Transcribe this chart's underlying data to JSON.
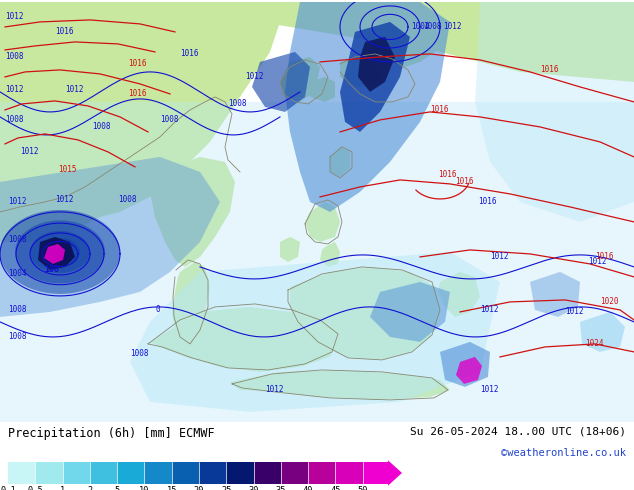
{
  "title_left": "Precipitation (6h) [mm] ECMWF",
  "title_right": "Su 26-05-2024 18..00 UTC (18+06)",
  "attribution": "©weatheronline.co.uk",
  "colorbar_labels": [
    "0.1",
    "0.5",
    "1",
    "2",
    "5",
    "10",
    "15",
    "20",
    "25",
    "30",
    "35",
    "40",
    "45",
    "50"
  ],
  "colorbar_colors": [
    "#c8f5f5",
    "#a0eaee",
    "#70d8ea",
    "#40c0e0",
    "#1aaad8",
    "#1488c8",
    "#0a60b0",
    "#083898",
    "#041870",
    "#3a006a",
    "#780080",
    "#b8009a",
    "#d800b8",
    "#f000d0"
  ],
  "fig_width": 6.34,
  "fig_height": 4.9,
  "dpi": 100,
  "map_ocean_color": "#cce8f8",
  "map_land_color": "#c8e8a0",
  "map_ocean_light": "#e8f6ff",
  "precip_light": "#b8e8f8",
  "precip_med_light": "#88ccf0",
  "precip_med": "#5090d8",
  "precip_heavy": "#1040a8",
  "precip_very_heavy": "#080848",
  "precip_magenta": "#e000c8",
  "contour_blue": "#1010d0",
  "contour_red": "#d01010",
  "coastline_color": "#888870"
}
